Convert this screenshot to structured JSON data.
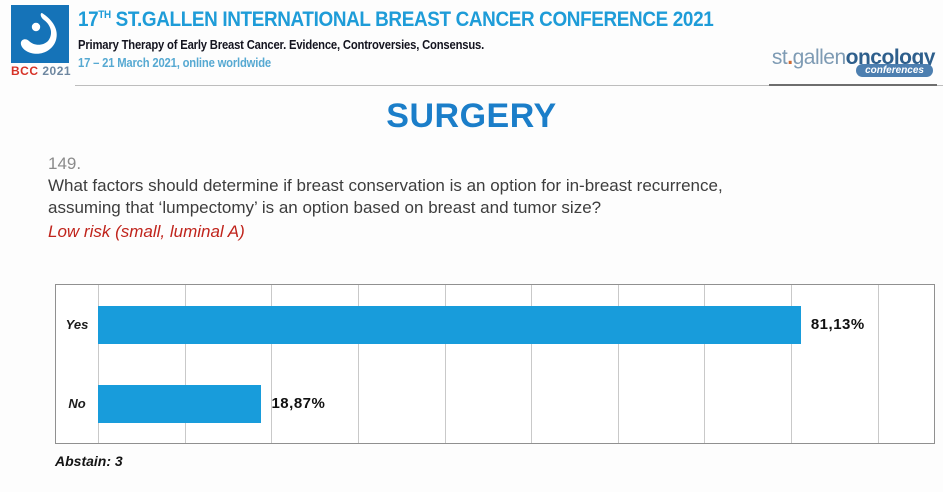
{
  "header": {
    "logo": {
      "bcc": "BCC",
      "year": "2021"
    },
    "title_prefix": "17",
    "title_sup": "TH",
    "title_rest": " ST.GALLEN INTERNATIONAL BREAST CANCER CONFERENCE 2021",
    "subtitle": "Primary Therapy of Early Breast Cancer. Evidence, Controversies, Consensus.",
    "dates": "17 – 21 March 2021, online worldwide",
    "org_logo": {
      "part1": "st",
      "dot": ".",
      "part2": "gallen",
      "part3": "oncology",
      "part4": "conferences"
    }
  },
  "main": {
    "section_title": "SURGERY",
    "question_number": "149.",
    "question": "What factors should determine if breast conservation is an option for in-breast recurrence, assuming that ‘lumpectomy’ is an option based on breast and tumor size?",
    "question_highlight": "Low risk (small, luminal A)",
    "abstain_note": "Abstain: 3"
  },
  "chart_data": {
    "type": "bar",
    "orientation": "horizontal",
    "categories": [
      "Yes",
      "No"
    ],
    "values": [
      81.13,
      18.87
    ],
    "value_labels": [
      "81,13%",
      "18,87%"
    ],
    "title": "",
    "xlabel": "",
    "ylabel": "",
    "xlim": [
      0,
      96.5
    ],
    "gridline_step": 10,
    "grid": true,
    "legend": false,
    "bar_color": "#189CDB"
  },
  "colors": {
    "title_blue": "#1E9CD8",
    "surgery_blue": "#1B7EC9",
    "bar_blue": "#189CDB",
    "highlight_red": "#C0241C",
    "bcc_square_blue": "#1573B8",
    "bcc_red": "#D63227",
    "org_slate_blue": "#7E9BB4",
    "org_navy": "#2E5F8C",
    "pill_blue": "#4D7FB0"
  }
}
